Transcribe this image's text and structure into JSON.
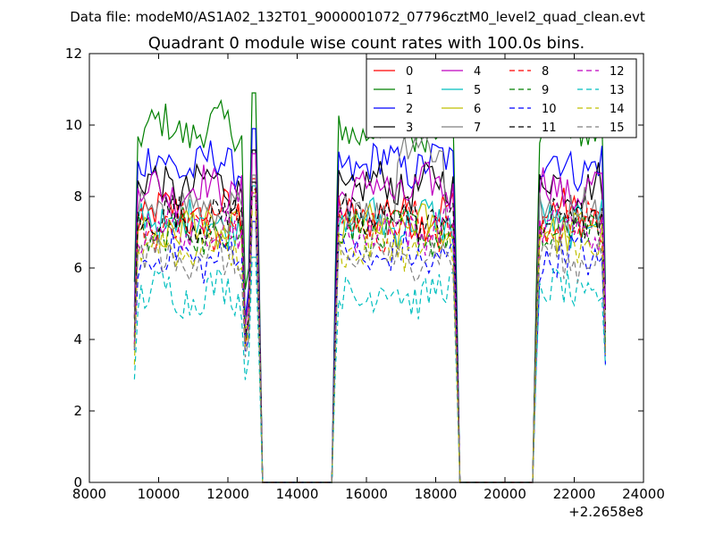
{
  "figure": {
    "suptitle": "Data file: modeM0/AS1A02_132T01_9000001072_07796cztM0_level2_quad_clean.evt"
  },
  "chart_data": {
    "type": "line",
    "title": "Quadrant 0 module wise count rates with 100.0s bins.",
    "xlabel": "",
    "ylabel": "",
    "x_offset_label": "+2.2658e8",
    "xlim": [
      8000,
      24000
    ],
    "ylim": [
      0,
      12
    ],
    "xticks": [
      8000,
      10000,
      12000,
      14000,
      16000,
      18000,
      20000,
      22000,
      24000
    ],
    "yticks": [
      0,
      2,
      4,
      6,
      8,
      10,
      12
    ],
    "grid": false,
    "legend": {
      "placement": "top-right",
      "columns": 4
    },
    "segments": [
      {
        "start": 9300,
        "end": 12500
      },
      {
        "start": 12600,
        "end": 12900
      },
      {
        "start": 15100,
        "end": 18600
      },
      {
        "start": 20900,
        "end": 22900
      }
    ],
    "series": [
      {
        "name": "0",
        "color": "#ff0000",
        "dash": "solid",
        "level": 7.5
      },
      {
        "name": "1",
        "color": "#008000",
        "dash": "solid",
        "level": 9.9
      },
      {
        "name": "2",
        "color": "#0000ff",
        "dash": "solid",
        "level": 8.9
      },
      {
        "name": "3",
        "color": "#000000",
        "dash": "solid",
        "level": 8.3
      },
      {
        "name": "4",
        "color": "#bf00bf",
        "dash": "solid",
        "level": 8.2
      },
      {
        "name": "5",
        "color": "#00bfbf",
        "dash": "solid",
        "level": 7.3
      },
      {
        "name": "6",
        "color": "#bfbf00",
        "dash": "solid",
        "level": 7.1
      },
      {
        "name": "7",
        "color": "#808080",
        "dash": "solid",
        "level": 7.6
      },
      {
        "name": "8",
        "color": "#ff0000",
        "dash": "dashed",
        "level": 7.2
      },
      {
        "name": "9",
        "color": "#008000",
        "dash": "dashed",
        "level": 7.0
      },
      {
        "name": "10",
        "color": "#0000ff",
        "dash": "dashed",
        "level": 6.3
      },
      {
        "name": "11",
        "color": "#000000",
        "dash": "dashed",
        "level": 7.4
      },
      {
        "name": "12",
        "color": "#bf00bf",
        "dash": "dashed",
        "level": 7.1
      },
      {
        "name": "13",
        "color": "#00bfbf",
        "dash": "dashed",
        "level": 5.3
      },
      {
        "name": "14",
        "color": "#bfbf00",
        "dash": "dashed",
        "level": 6.6
      },
      {
        "name": "15",
        "color": "#808080",
        "dash": "dashed",
        "level": 6.3
      }
    ]
  }
}
